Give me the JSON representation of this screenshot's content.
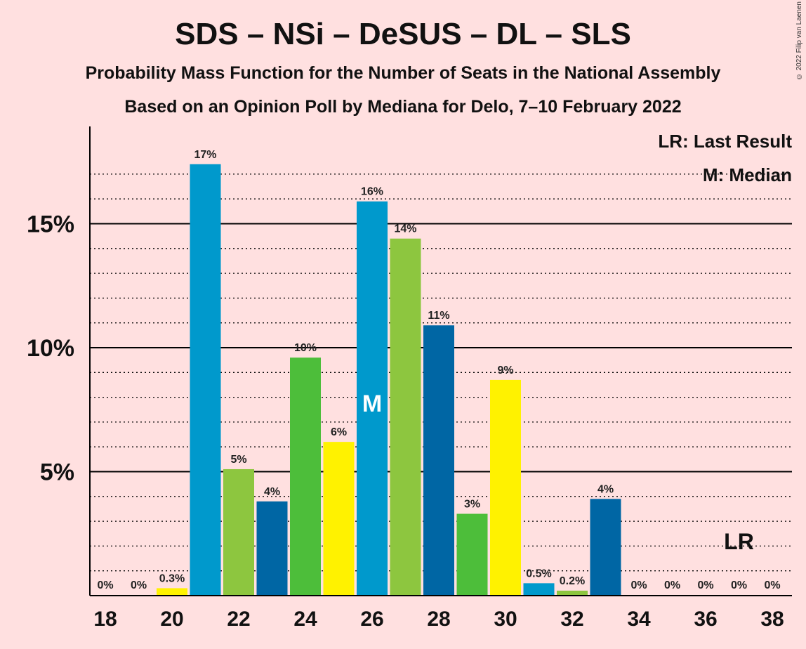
{
  "title": "SDS – NSi – DeSUS – DL – SLS",
  "subtitle1": "Probability Mass Function for the Number of Seats in the National Assembly",
  "subtitle2": "Based on an Opinion Poll by Mediana for Delo, 7–10 February 2022",
  "copyright": "© 2022 Filip van Laenen",
  "legend": {
    "lr": "LR: Last Result",
    "m": "M: Median"
  },
  "markers": {
    "median_label": "M",
    "median_seat": 26,
    "last_result_label": "LR",
    "last_result_seat": 37
  },
  "colors": {
    "background": "#ffe0e0",
    "palette": [
      "#0099cc",
      "#8dc63f",
      "#0066a4",
      "#4dbe3a",
      "#fff200"
    ]
  },
  "chart_data": {
    "type": "bar",
    "categories": [
      18,
      19,
      20,
      21,
      22,
      23,
      24,
      25,
      26,
      27,
      28,
      29,
      30,
      31,
      32,
      33,
      34,
      35,
      36,
      37,
      38
    ],
    "values": [
      0,
      0,
      0.3,
      17.4,
      5.1,
      3.8,
      9.6,
      6.2,
      15.9,
      14.4,
      10.9,
      3.3,
      8.7,
      0.5,
      0.2,
      3.9,
      0,
      0,
      0,
      0,
      0
    ],
    "data_labels": [
      "0%",
      "0%",
      "0.3%",
      "17%",
      "5%",
      "4%",
      "10%",
      "6%",
      "16%",
      "14%",
      "11%",
      "3%",
      "9%",
      "0.5%",
      "0.2%",
      "4%",
      "0%",
      "0%",
      "0%",
      "0%",
      "0%"
    ],
    "x_tick_labels": [
      "18",
      "20",
      "22",
      "24",
      "26",
      "28",
      "30",
      "32",
      "34",
      "36",
      "38"
    ],
    "y_tick_labels": [
      "5%",
      "10%",
      "15%"
    ],
    "y_ticks": [
      5,
      10,
      15
    ],
    "ylim": [
      0,
      19
    ],
    "grid": "dotted minor lines every 1%, solid lines at 5%",
    "legend_position": "top-right"
  }
}
